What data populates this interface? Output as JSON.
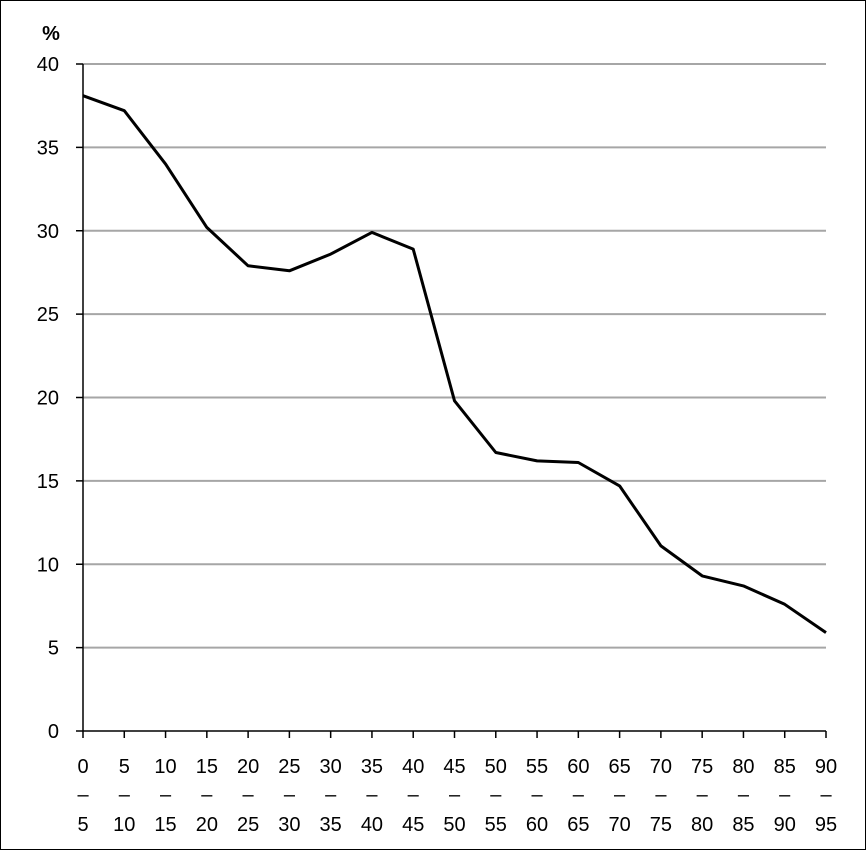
{
  "chart_data": {
    "type": "line",
    "title": "",
    "xlabel": "",
    "ylabel": "%",
    "ylim": [
      0,
      40
    ],
    "y_ticks": [
      "0",
      "5",
      "10",
      "15",
      "20",
      "25",
      "30",
      "35",
      "40"
    ],
    "grid": true,
    "categories": [
      {
        "start": "0",
        "dash": "–",
        "end": "5"
      },
      {
        "start": "5",
        "dash": "–",
        "end": "10"
      },
      {
        "start": "10",
        "dash": "–",
        "end": "15"
      },
      {
        "start": "15",
        "dash": "–",
        "end": "20"
      },
      {
        "start": "20",
        "dash": "–",
        "end": "25"
      },
      {
        "start": "25",
        "dash": "–",
        "end": "30"
      },
      {
        "start": "30",
        "dash": "–",
        "end": "35"
      },
      {
        "start": "35",
        "dash": "–",
        "end": "40"
      },
      {
        "start": "40",
        "dash": "–",
        "end": "45"
      },
      {
        "start": "45",
        "dash": "–",
        "end": "50"
      },
      {
        "start": "50",
        "dash": "–",
        "end": "55"
      },
      {
        "start": "55",
        "dash": "–",
        "end": "60"
      },
      {
        "start": "60",
        "dash": "–",
        "end": "65"
      },
      {
        "start": "65",
        "dash": "–",
        "end": "70"
      },
      {
        "start": "70",
        "dash": "–",
        "end": "75"
      },
      {
        "start": "75",
        "dash": "–",
        "end": "80"
      },
      {
        "start": "80",
        "dash": "–",
        "end": "85"
      },
      {
        "start": "85",
        "dash": "–",
        "end": "90"
      },
      {
        "start": "90",
        "dash": "–",
        "end": "95"
      }
    ],
    "series": [
      {
        "values": [
          38.1,
          37.2,
          34.0,
          30.2,
          27.9,
          27.6,
          28.6,
          29.9,
          28.9,
          19.8,
          16.7,
          16.2,
          16.1,
          14.7,
          11.1,
          9.3,
          8.7,
          7.6,
          5.9
        ],
        "color": "#000000"
      }
    ],
    "colors": {
      "grid": "#a6a6a6",
      "axis": "#000000",
      "line": "#000000"
    }
  }
}
